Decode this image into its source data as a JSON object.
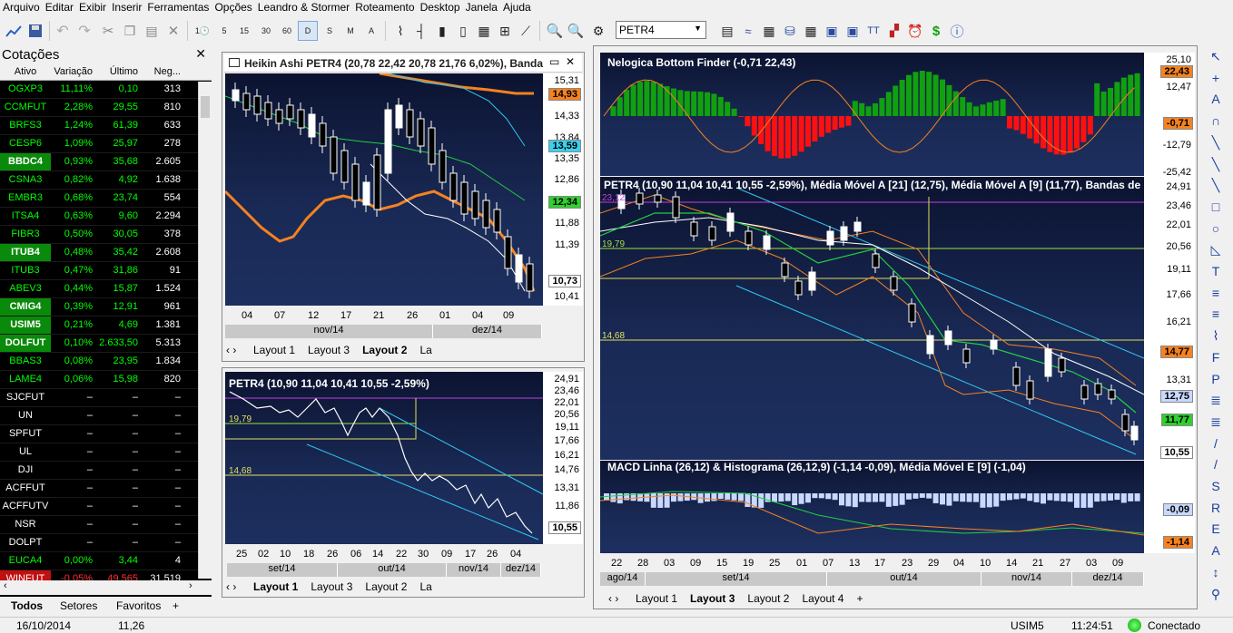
{
  "menu": [
    "Arquivo",
    "Editar",
    "Exibir",
    "Inserir",
    "Ferramentas",
    "Opções",
    "Leandro & Stormer",
    "Roteamento",
    "Desktop",
    "Janela",
    "Ajuda"
  ],
  "toolbar": {
    "periods": [
      "1",
      "5",
      "15",
      "30",
      "60",
      "D",
      "S",
      "M",
      "A"
    ],
    "symbol": "PETR4"
  },
  "quotes": {
    "title": "Cotações",
    "columns": [
      "Ativo",
      "Variação",
      "Último",
      "Neg..."
    ],
    "rows": [
      [
        "OGXP3",
        "11,11%",
        "0,10",
        "313"
      ],
      [
        "CCMFUT",
        "2,28%",
        "29,55",
        "810"
      ],
      [
        "BRFS3",
        "1,24%",
        "61,39",
        "633"
      ],
      [
        "CESP6",
        "1,09%",
        "25,97",
        "278"
      ],
      [
        "BBDC4",
        "0,93%",
        "35,68",
        "2.605"
      ],
      [
        "CSNA3",
        "0,82%",
        "4,92",
        "1.638"
      ],
      [
        "EMBR3",
        "0,68%",
        "23,74",
        "554"
      ],
      [
        "ITSA4",
        "0,63%",
        "9,60",
        "2.294"
      ],
      [
        "FIBR3",
        "0,50%",
        "30,05",
        "378"
      ],
      [
        "ITUB4",
        "0,48%",
        "35,42",
        "2.608"
      ],
      [
        "ITUB3",
        "0,47%",
        "31,86",
        "91"
      ],
      [
        "ABEV3",
        "0,44%",
        "15,87",
        "1.524"
      ],
      [
        "CMIG4",
        "0,39%",
        "12,91",
        "961"
      ],
      [
        "USIM5",
        "0,21%",
        "4,69",
        "1.381"
      ],
      [
        "DOLFUT",
        "0,10%",
        "2.633,50",
        "5.313"
      ],
      [
        "BBAS3",
        "0,08%",
        "23,95",
        "1.834"
      ],
      [
        "LAME4",
        "0,06%",
        "15,98",
        "820"
      ],
      [
        "SJCFUT",
        "–",
        "–",
        "–"
      ],
      [
        "UN",
        "–",
        "–",
        "–"
      ],
      [
        "SPFUT",
        "–",
        "–",
        "–"
      ],
      [
        "UL",
        "–",
        "–",
        "–"
      ],
      [
        "DJI",
        "–",
        "–",
        "–"
      ],
      [
        "ACFFUT",
        "–",
        "–",
        "–"
      ],
      [
        "ACFFUTV",
        "–",
        "–",
        "–"
      ],
      [
        "NSR",
        "–",
        "–",
        "–"
      ],
      [
        "DOLPT",
        "–",
        "–",
        "–"
      ],
      [
        "EUCA4",
        "0,00%",
        "3,44",
        "4"
      ],
      [
        "WINFUT",
        "-0,05%",
        "49.565",
        "31.519"
      ]
    ],
    "bold_rows": [
      "BBDC4",
      "ITUB4",
      "CMIG4",
      "USIM5",
      "DOLFUT"
    ],
    "tabs": [
      "Todos",
      "Setores",
      "Favoritos",
      "+"
    ]
  },
  "colors": {
    "up": "#00d000",
    "down": "#ff3030",
    "bg": "#000000",
    "accent_orange": "#f58220"
  },
  "chart1": {
    "title": "Heikin Ashi PETR4 (20,78 22,42 20,78 21,76 6,02%), Banda",
    "prices": [
      "15,31",
      "14,33",
      "13,84",
      "13,35",
      "12,86",
      "11,88",
      "11,39",
      "10,41"
    ],
    "boxes": [
      {
        "v": "14,93",
        "c": "#f58220"
      },
      {
        "v": "13,59",
        "c": "#3ad0f0"
      },
      {
        "v": "12,34",
        "c": "#2fd02f"
      },
      {
        "v": "10,73",
        "c": "#ffffff"
      }
    ],
    "dates": [
      "04",
      "07",
      "12",
      "17",
      "21",
      "26",
      "01",
      "04",
      "09"
    ],
    "months": [
      "nov/14",
      "dez/14"
    ],
    "tabs": [
      "Layout 1",
      "Layout 3",
      "Layout 2",
      "La"
    ]
  },
  "chart2": {
    "title": "PETR4 (10,90 11,04 10,41 10,55 -2,59%)",
    "prices": [
      "24,91",
      "23,46",
      "22,01",
      "20,56",
      "19,11",
      "17,66",
      "16,21",
      "14,76",
      "13,31",
      "11,86"
    ],
    "box": "10,55",
    "levels": [
      "19,79",
      "14,68"
    ],
    "dates": [
      "25",
      "02",
      "10",
      "18",
      "26",
      "06",
      "14",
      "22",
      "30",
      "09",
      "17",
      "26",
      "04"
    ],
    "months": [
      "set/14",
      "out/14",
      "nov/14",
      "dez/14"
    ],
    "tabs": [
      "Layout 1",
      "Layout 3",
      "Layout 2",
      "La"
    ]
  },
  "chart3": {
    "nbf_title": "Nelogica Bottom Finder (-0,71 22,43)",
    "nbf_prices": [
      "25,10",
      "12,47",
      "-12,79",
      "-25,42"
    ],
    "nbf_boxes": [
      "22,43",
      "-0,71"
    ],
    "main_title": "PETR4 (10,90 11,04 10,41 10,55 -2,59%), Média Móvel A [21] (12,75), Média Móvel A [9] (11,77), Bandas de",
    "main_prices": [
      "24,91",
      "23,46",
      "22,01",
      "20,56",
      "19,11",
      "17,66",
      "16,21",
      "13,31"
    ],
    "main_boxes": [
      {
        "v": "14,77",
        "c": "#f58220"
      },
      {
        "v": "12,75",
        "c": "#c8d8ff"
      },
      {
        "v": "11,77",
        "c": "#2fd02f"
      },
      {
        "v": "10,55",
        "c": "#ffffff"
      }
    ],
    "levels": [
      "23,12",
      "19,79",
      "14,68"
    ],
    "macd_title": "MACD Linha (26,12) & Histograma (26,12,9) (-1,14 -0,09), Média Móvel E [9] (-1,04)",
    "macd_boxes": [
      "-0,09",
      "-1,14"
    ],
    "dates": [
      "22",
      "28",
      "03",
      "09",
      "15",
      "19",
      "25",
      "01",
      "07",
      "13",
      "17",
      "23",
      "29",
      "04",
      "10",
      "14",
      "21",
      "27",
      "03",
      "09"
    ],
    "months": [
      "ago/14",
      "set/14",
      "out/14",
      "nov/14",
      "dez/14"
    ],
    "tabs": [
      "Layout 1",
      "Layout 3",
      "Layout 2",
      "Layout 4",
      "+"
    ]
  },
  "status": {
    "date": "16/10/2014",
    "value": "11,26",
    "symbol": "USIM5",
    "time": "11:24:51",
    "conn": "Conectado"
  }
}
